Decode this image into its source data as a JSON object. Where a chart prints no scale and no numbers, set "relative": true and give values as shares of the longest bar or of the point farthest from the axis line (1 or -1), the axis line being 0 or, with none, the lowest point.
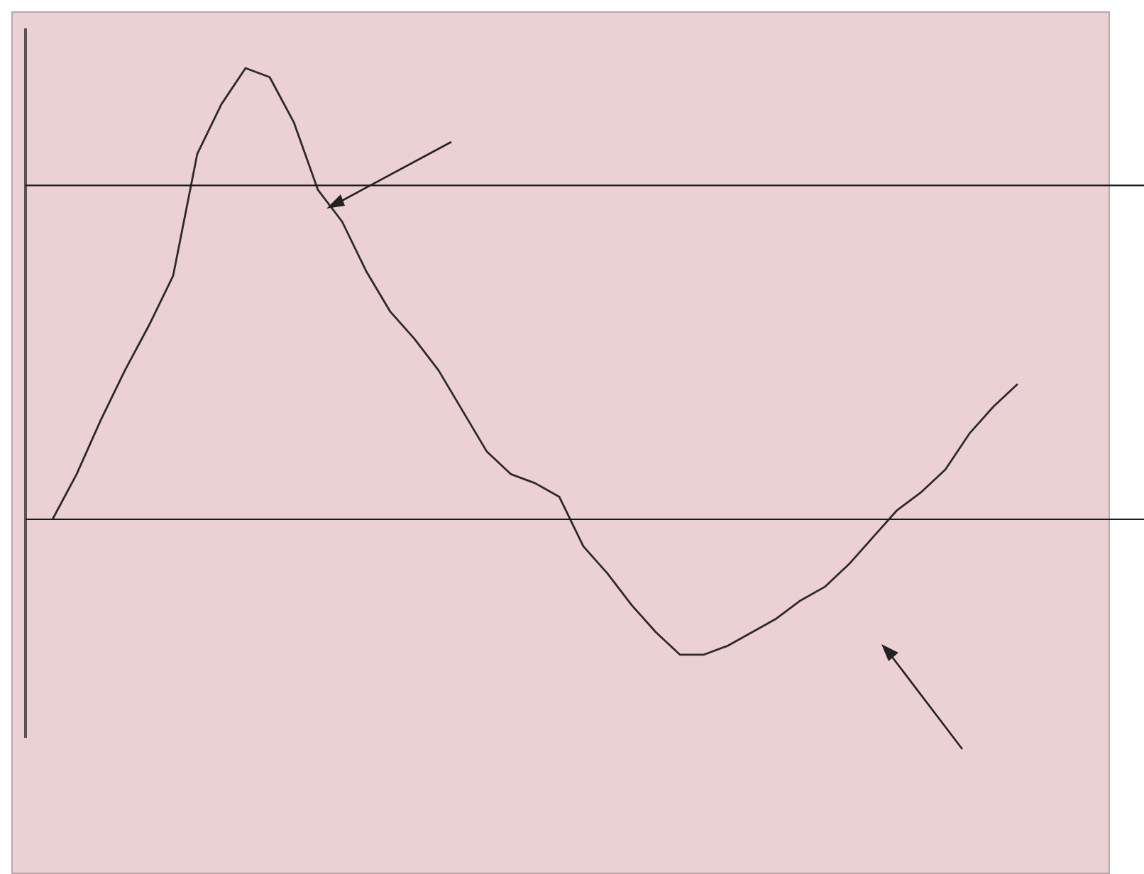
{
  "chart_data": {
    "type": "line",
    "relative": true,
    "color": "#2b2b2b",
    "categories": [
      null,
      null,
      null,
      null,
      null,
      null,
      null,
      null,
      null,
      null,
      null,
      null,
      null,
      null,
      null,
      null,
      null,
      null,
      null,
      null,
      null,
      null,
      null,
      null,
      null,
      null,
      null,
      null,
      null,
      null,
      null,
      null,
      null,
      null,
      null,
      null,
      null,
      null,
      null,
      null,
      null
    ],
    "values": [
      0,
      0.1,
      0.22,
      0.33,
      0.43,
      0.54,
      0.81,
      0.92,
      1,
      0.98,
      0.88,
      0.73,
      0.66,
      0.55,
      0.46,
      0.4,
      0.33,
      0.24,
      0.15,
      0.1,
      0.08,
      0.05,
      -0.06,
      -0.12,
      -0.19,
      -0.25,
      -0.3,
      -0.3,
      -0.28,
      -0.25,
      -0.22,
      -0.18,
      -0.15,
      -0.1,
      -0.04,
      0.02,
      0.06,
      0.11,
      0.19,
      0.25,
      0.3
    ],
    "ref_lines": [
      {
        "axis": "y",
        "value": 0.74,
        "color": "#1a1a1a"
      },
      {
        "axis": "y",
        "value": 0,
        "color": "#1a1a1a"
      }
    ]
  }
}
